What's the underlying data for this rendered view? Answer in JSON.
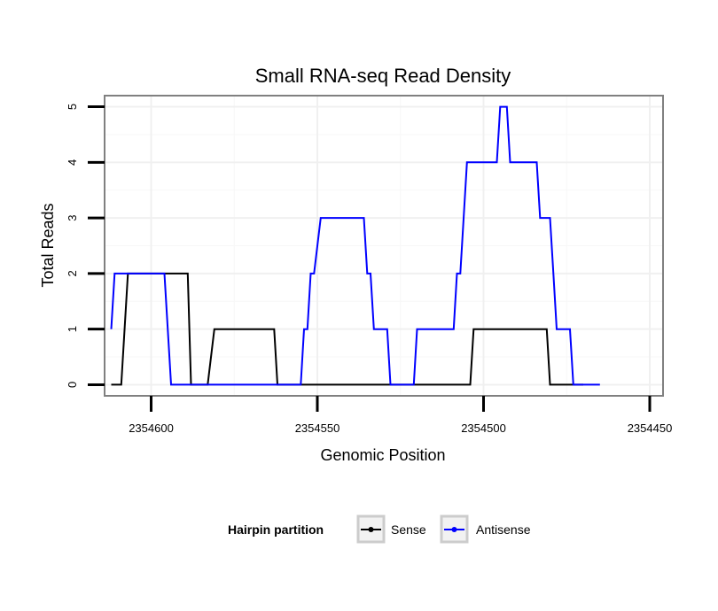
{
  "chart_data": {
    "type": "line",
    "title": "Small RNA-seq Read Density",
    "xlabel": "Genomic Position",
    "ylabel": "Total Reads",
    "x_reversed": true,
    "xlim": [
      2354614,
      2354446
    ],
    "ylim": [
      -0.2,
      5.2
    ],
    "x_ticks": [
      2354600,
      2354550,
      2354500,
      2354450
    ],
    "x_tick_labels": [
      "2354600",
      "2354550",
      "2354500",
      "2354450"
    ],
    "y_ticks": [
      0,
      1,
      2,
      3,
      4,
      5
    ],
    "y_tick_labels": [
      "0",
      "1",
      "2",
      "3",
      "4",
      "5"
    ],
    "grid": true,
    "legend": {
      "title": "Hairpin partition",
      "position": "bottom",
      "entries": [
        "Sense",
        "Antisense"
      ]
    },
    "series": [
      {
        "name": "Sense",
        "color": "#000000",
        "points": [
          [
            2354612,
            0
          ],
          [
            2354609,
            0
          ],
          [
            2354607,
            2
          ],
          [
            2354591,
            2
          ],
          [
            2354589,
            2
          ],
          [
            2354588,
            0
          ],
          [
            2354583,
            0
          ],
          [
            2354581,
            1
          ],
          [
            2354563,
            1
          ],
          [
            2354562,
            0
          ],
          [
            2354504,
            0
          ],
          [
            2354503,
            1
          ],
          [
            2354481,
            1
          ],
          [
            2354480,
            0
          ],
          [
            2354470,
            0
          ]
        ]
      },
      {
        "name": "Antisense",
        "color": "#0000ff",
        "points": [
          [
            2354612,
            1
          ],
          [
            2354611,
            2
          ],
          [
            2354596,
            2
          ],
          [
            2354594,
            0
          ],
          [
            2354555,
            0
          ],
          [
            2354554,
            1
          ],
          [
            2354553,
            1
          ],
          [
            2354552,
            2
          ],
          [
            2354551,
            2
          ],
          [
            2354549,
            3
          ],
          [
            2354536,
            3
          ],
          [
            2354535,
            2
          ],
          [
            2354534,
            2
          ],
          [
            2354533,
            1
          ],
          [
            2354529,
            1
          ],
          [
            2354528,
            0
          ],
          [
            2354521,
            0
          ],
          [
            2354520,
            1
          ],
          [
            2354509,
            1
          ],
          [
            2354508,
            2
          ],
          [
            2354507,
            2
          ],
          [
            2354505,
            4
          ],
          [
            2354496,
            4
          ],
          [
            2354495,
            5
          ],
          [
            2354493,
            5
          ],
          [
            2354492,
            4
          ],
          [
            2354484,
            4
          ],
          [
            2354483,
            3
          ],
          [
            2354480,
            3
          ],
          [
            2354479,
            2
          ],
          [
            2354478,
            1
          ],
          [
            2354474,
            1
          ],
          [
            2354473,
            0
          ],
          [
            2354465,
            0
          ]
        ]
      }
    ]
  }
}
